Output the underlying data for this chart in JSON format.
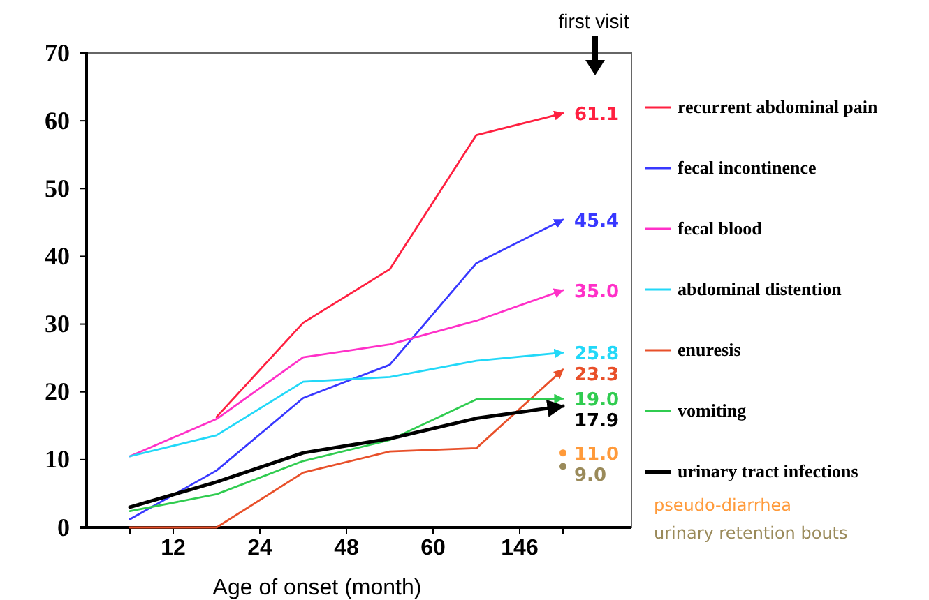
{
  "chart_data": {
    "type": "line",
    "xlabel": "Age of onset (month)",
    "categories": [
      null,
      "12",
      null,
      "24",
      null,
      "48",
      null,
      "60",
      null,
      "146",
      null
    ],
    "ylim": [
      0,
      70
    ],
    "yticks": [
      0,
      10,
      20,
      30,
      40,
      50,
      60,
      70
    ],
    "grid": false,
    "legend": "right",
    "line_style": "solid",
    "annotations": [
      "first visit"
    ],
    "series": [
      {
        "name": "recurrent abdominal pain",
        "color": "#ff2040",
        "values": [
          null,
          null,
          16.3,
          null,
          30.2,
          null,
          38.1,
          null,
          57.9,
          null,
          61.1
        ],
        "value_labels": [
          null,
          null,
          null,
          null,
          null,
          null,
          null,
          null,
          null,
          null,
          "61.1"
        ]
      },
      {
        "name": "fecal incontinence",
        "color": "#3838ff",
        "values": [
          1.2,
          null,
          8.4,
          null,
          19.1,
          null,
          24.0,
          null,
          39.0,
          null,
          45.4
        ],
        "value_labels": [
          null,
          null,
          null,
          null,
          null,
          null,
          null,
          null,
          null,
          null,
          "45.4"
        ]
      },
      {
        "name": "fecal blood",
        "color": "#ff30c8",
        "values": [
          10.5,
          null,
          16.0,
          null,
          25.1,
          null,
          27.0,
          null,
          30.5,
          null,
          35.0
        ],
        "value_labels": [
          null,
          null,
          null,
          null,
          null,
          null,
          null,
          null,
          null,
          null,
          "35.0"
        ]
      },
      {
        "name": "abdominal distention",
        "color": "#22d8f8",
        "values": [
          10.5,
          null,
          13.6,
          null,
          21.5,
          null,
          22.2,
          null,
          24.6,
          null,
          25.8
        ],
        "value_labels": [
          null,
          null,
          null,
          null,
          null,
          null,
          null,
          null,
          null,
          null,
          "25.8"
        ]
      },
      {
        "name": "enuresis",
        "color": "#e8502a",
        "values": [
          0,
          null,
          0,
          null,
          8.1,
          null,
          11.2,
          null,
          11.7,
          null,
          23.3
        ],
        "value_labels": [
          null,
          null,
          null,
          null,
          null,
          null,
          null,
          null,
          null,
          null,
          "23.3"
        ]
      },
      {
        "name": "vomiting",
        "color": "#30cc50",
        "values": [
          2.4,
          null,
          4.9,
          null,
          9.8,
          null,
          12.9,
          null,
          18.9,
          null,
          19.0
        ],
        "value_labels": [
          null,
          null,
          null,
          null,
          null,
          null,
          null,
          null,
          null,
          null,
          "19.0"
        ]
      },
      {
        "name": "urinary tract infections",
        "color": "#000000",
        "values": [
          3.0,
          null,
          6.7,
          null,
          11.0,
          null,
          13.1,
          null,
          16.1,
          null,
          17.9
        ],
        "value_labels": [
          null,
          null,
          null,
          null,
          null,
          null,
          null,
          null,
          null,
          null,
          "17.9"
        ]
      },
      {
        "name": "pseudo-diarrhea",
        "type": "scatter",
        "color": "#ff9a3a",
        "values": [
          null,
          null,
          null,
          null,
          null,
          null,
          null,
          null,
          null,
          null,
          11.0
        ],
        "value_labels": [
          null,
          null,
          null,
          null,
          null,
          null,
          null,
          null,
          null,
          null,
          "11.0"
        ]
      },
      {
        "name": "urinary retention bouts",
        "type": "scatter",
        "color": "#9a8a5a",
        "values": [
          null,
          null,
          null,
          null,
          null,
          null,
          null,
          null,
          null,
          null,
          9.0
        ],
        "value_labels": [
          null,
          null,
          null,
          null,
          null,
          null,
          null,
          null,
          null,
          null,
          "9.0"
        ]
      }
    ]
  }
}
